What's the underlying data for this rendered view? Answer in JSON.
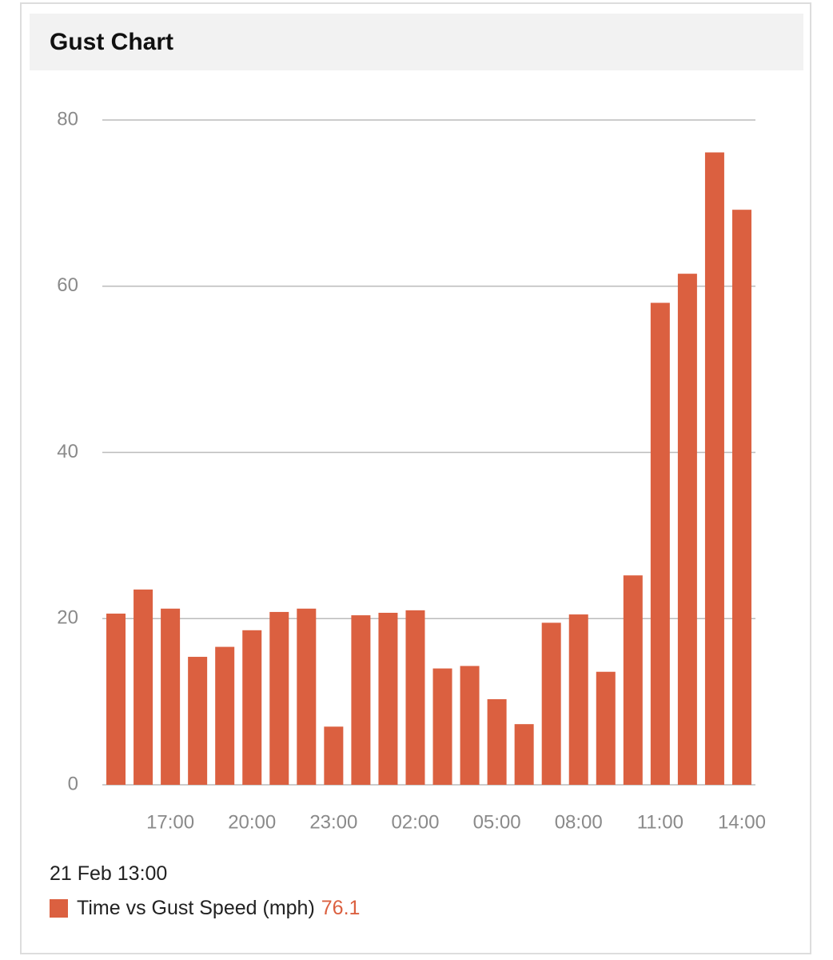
{
  "chart_data": {
    "type": "bar",
    "title": "Gust Chart",
    "categories": [
      null,
      null,
      "17:00",
      null,
      null,
      "20:00",
      null,
      null,
      "23:00",
      null,
      null,
      "02:00",
      null,
      null,
      "05:00",
      null,
      null,
      "08:00",
      null,
      null,
      "11:00",
      null,
      null,
      "14:00"
    ],
    "series": [
      {
        "name": "Time vs Gust Speed (mph)",
        "color": "#db6040",
        "values": [
          20.6,
          23.5,
          21.2,
          15.4,
          16.6,
          18.6,
          20.8,
          21.2,
          7.0,
          20.4,
          20.7,
          21.0,
          14.0,
          14.3,
          10.3,
          7.3,
          19.5,
          20.5,
          13.6,
          25.2,
          58.0,
          61.5,
          76.1,
          69.2
        ]
      }
    ],
    "ylim": [
      0,
      80
    ],
    "yticks": [
      0,
      20,
      40,
      60,
      80
    ],
    "grid": true,
    "selected_label": "21 Feb 13:00"
  }
}
